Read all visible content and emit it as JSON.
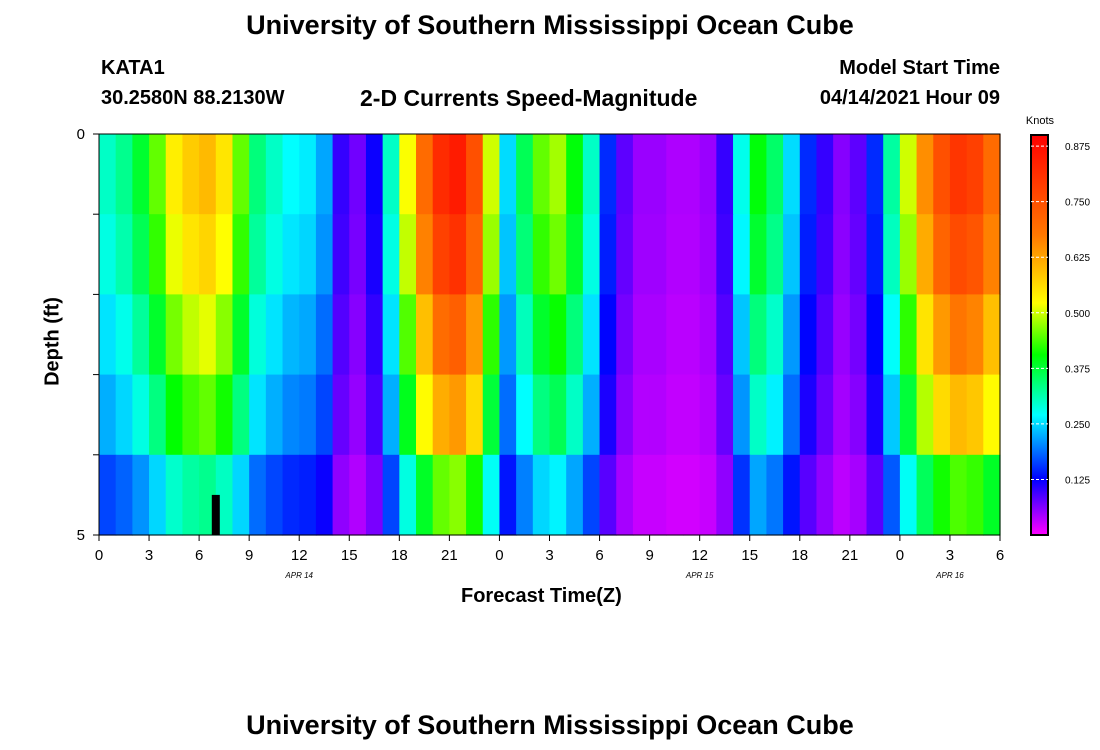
{
  "header": {
    "top_title": "University of Southern Mississippi Ocean Cube",
    "bottom_title": "University of Southern Mississippi Ocean Cube",
    "station_id": "KATA1",
    "station_coords": "30.2580N  88.2130W",
    "model_start_label": "Model Start Time",
    "model_start_value": "04/14/2021 Hour 09"
  },
  "chart_data": {
    "type": "heatmap",
    "title": "2-D Currents Speed-Magnitude",
    "xlabel": "Forecast Time(Z)",
    "ylabel": "Depth (ft)",
    "x_tick_labels": [
      "0",
      "3",
      "6",
      "9",
      "12",
      "15",
      "18",
      "21",
      "0",
      "3",
      "6",
      "9",
      "12",
      "15",
      "18",
      "21",
      "0",
      "3",
      "6"
    ],
    "x_range_hours": [
      0,
      54
    ],
    "x_columns_per_hour": 1,
    "date_labels": [
      {
        "text": "APR 14",
        "hour": 12
      },
      {
        "text": "APR 15",
        "hour": 36
      },
      {
        "text": "APR 16",
        "hour": 51
      }
    ],
    "y_range": [
      0,
      5
    ],
    "y_tick_labels": [
      {
        "value": 0,
        "label": "0"
      },
      {
        "value": 1,
        "label": ""
      },
      {
        "value": 2,
        "label": ""
      },
      {
        "value": 3,
        "label": ""
      },
      {
        "value": 4,
        "label": ""
      },
      {
        "value": 5,
        "label": "5"
      }
    ],
    "depth_layers": 5,
    "base_profile_knots": [
      0.3,
      0.33,
      0.38,
      0.45,
      0.54,
      0.58,
      0.6,
      0.55,
      0.45,
      0.34,
      0.3,
      0.27,
      0.26,
      0.22,
      0.1,
      0.07,
      0.12,
      0.3,
      0.52,
      0.7,
      0.82,
      0.85,
      0.75,
      0.5,
      0.25,
      0.36,
      0.45,
      0.48,
      0.4,
      0.3,
      0.15,
      0.08,
      0.05,
      0.05,
      0.04,
      0.04,
      0.05,
      0.1,
      0.28,
      0.4,
      0.35,
      0.25,
      0.15,
      0.1,
      0.06,
      0.08,
      0.15,
      0.32,
      0.5,
      0.65,
      0.75,
      0.8,
      0.78,
      0.7,
      0.6
    ],
    "depth_factor": [
      1.0,
      0.95,
      0.85,
      0.75,
      0.55
    ],
    "colorbar": {
      "label": "Knots",
      "min": 0.0,
      "max": 0.9,
      "ticks": [
        "0.125",
        "0.250",
        "0.375",
        "0.500",
        "0.625",
        "0.750",
        "0.875"
      ]
    },
    "marker": {
      "hour": 7,
      "depth_from": 4.5,
      "depth_to": 5,
      "color": "#000000"
    }
  }
}
